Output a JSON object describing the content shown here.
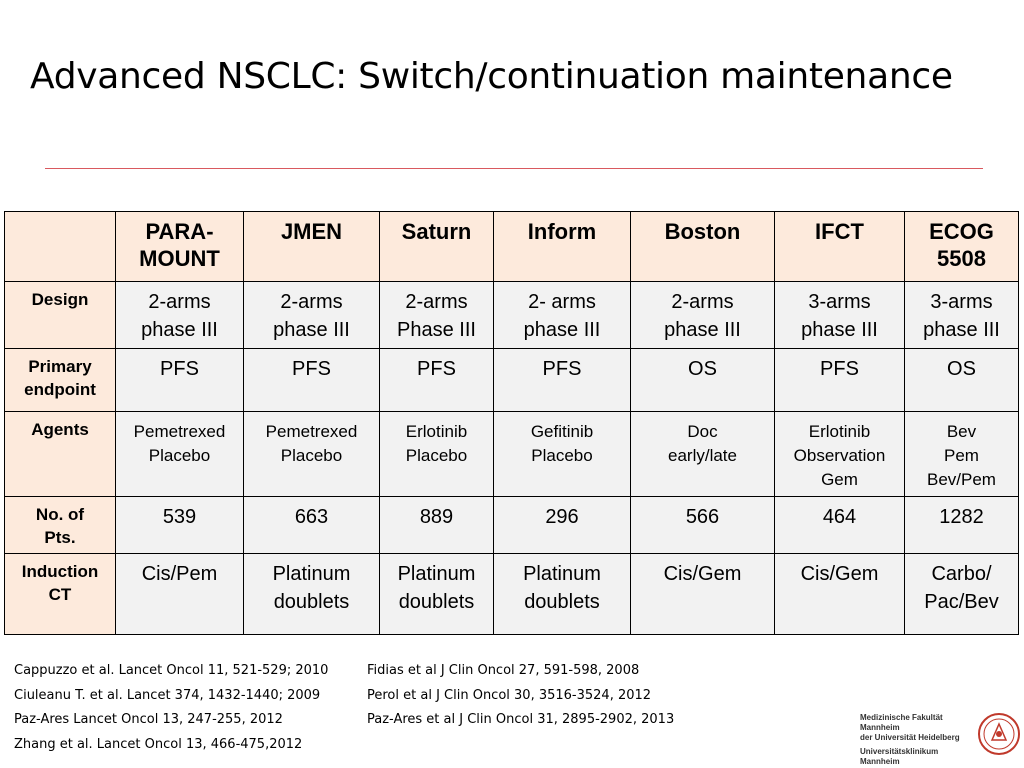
{
  "title": "Advanced NSCLC: Switch/continuation maintenance",
  "table": {
    "headers": [
      "",
      "PARA-\nMOUNT",
      "JMEN",
      "Saturn",
      "Inform",
      "Boston",
      "IFCT",
      "ECOG\n5508"
    ],
    "rows": [
      {
        "label": "Design",
        "style": "big",
        "cells": [
          "2-arms\nphase III",
          "2-arms\nphase III",
          "2-arms\nPhase III",
          "2- arms\nphase III",
          "2-arms\nphase III",
          "3-arms\nphase III",
          "3-arms\nphase III"
        ]
      },
      {
        "label": "Primary\nendpoint",
        "style": "big",
        "cells": [
          "PFS",
          "PFS",
          "PFS",
          "PFS",
          "OS",
          "PFS",
          "OS"
        ]
      },
      {
        "label": "Agents",
        "style": "small",
        "cells": [
          "Pemetrexed\nPlacebo",
          "Pemetrexed\nPlacebo",
          "Erlotinib\nPlacebo",
          "Gefitinib\nPlacebo",
          "Doc\nearly/late",
          "Erlotinib\nObservation\nGem",
          "Bev\nPem\nBev/Pem"
        ]
      },
      {
        "label": "No. of\nPts.",
        "style": "big",
        "cells": [
          "539",
          "663",
          "889",
          "296",
          "566",
          "464",
          "1282"
        ]
      },
      {
        "label": "Induction\nCT",
        "style": "big",
        "cells": [
          "Cis/Pem",
          "Platinum\ndoublets",
          "Platinum\ndoublets",
          "Platinum\ndoublets",
          "Cis/Gem",
          "Cis/Gem",
          "Carbo/\nPac/Bev"
        ]
      }
    ]
  },
  "references_left": [
    "Cappuzzo et al. Lancet Oncol 11, 521-529; 2010",
    "Ciuleanu T. et al. Lancet 374, 1432-1440; 2009",
    "Paz-Ares Lancet Oncol  13, 247-255, 2012",
    "Zhang et al. Lancet Oncol 13, 466-475,2012"
  ],
  "references_right": [
    "Fidias et al J Clin Oncol 27, 591-598, 2008",
    "Perol et al J Clin Oncol 30, 3516-3524, 2012",
    "Paz-Ares et al  J Clin Oncol 31, 2895-2902, 2013"
  ],
  "logo": {
    "line1": "Medizinische Fakultät Mannheim",
    "line2": "der Universität Heidelberg",
    "line3": "Universitätsklinikum Mannheim"
  },
  "colors": {
    "header_fill": "#fdeadc",
    "cell_fill": "#f2f2f2",
    "rule": "#d9595f",
    "seal": "#c0392b"
  }
}
